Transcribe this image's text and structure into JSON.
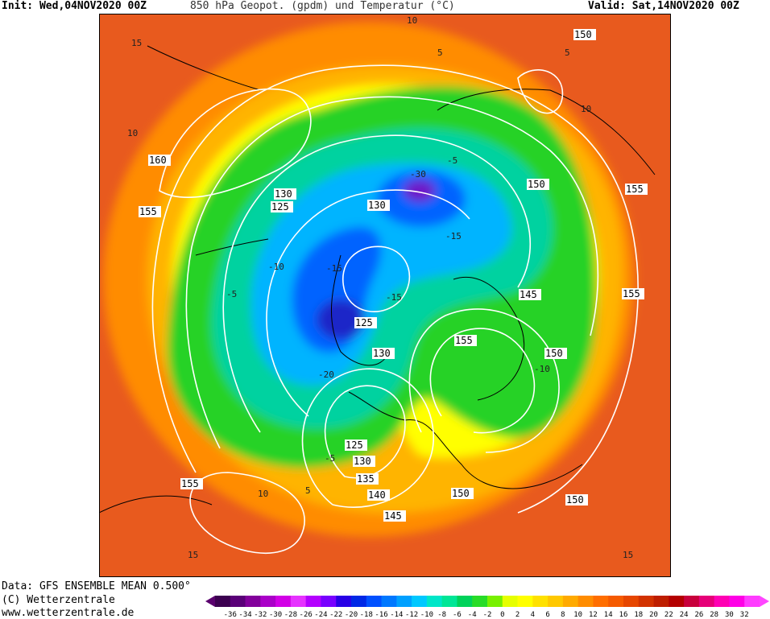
{
  "header": {
    "init": "Init: Wed,04NOV2020 00Z",
    "title": "850 hPa Geopot. (gpdm) und Temperatur (°C)",
    "valid": "Valid: Sat,14NOV2020 00Z"
  },
  "footer": {
    "data_source": "Data: GFS ENSEMBLE MEAN 0.500°",
    "copyright": "(C) Wetterzentrale",
    "website": "www.wetterzentrale.de"
  },
  "colorbar": {
    "ticks": [
      "-36",
      "-34",
      "-32",
      "-30",
      "-28",
      "-26",
      "-24",
      "-22",
      "-20",
      "-18",
      "-16",
      "-14",
      "-12",
      "-10",
      "-8",
      "-6",
      "-4",
      "-2",
      "0",
      "2",
      "4",
      "6",
      "8",
      "10",
      "12",
      "14",
      "16",
      "18",
      "20",
      "22",
      "24",
      "26",
      "28",
      "30",
      "32"
    ],
    "colors": [
      "#3c0050",
      "#5a0078",
      "#82009b",
      "#aa00c8",
      "#d200e6",
      "#e632ff",
      "#b400ff",
      "#7800ff",
      "#2800e6",
      "#0028e6",
      "#0050ff",
      "#0078ff",
      "#00a0ff",
      "#00c8ff",
      "#00e6c8",
      "#00e696",
      "#00d25a",
      "#28dc28",
      "#78f000",
      "#e6ff00",
      "#ffff00",
      "#ffe100",
      "#ffc800",
      "#ffaa00",
      "#ff8c00",
      "#ff6e00",
      "#f55a00",
      "#e64600",
      "#d23200",
      "#be1e00",
      "#b40000",
      "#c8003c",
      "#e60078",
      "#ff00b4",
      "#ff00e6",
      "#ff3cff"
    ],
    "cap_left": "#5a006e",
    "cap_right": "#ff46ff"
  },
  "map": {
    "height_labels": [
      "160",
      "155",
      "150",
      "150",
      "155",
      "130",
      "125",
      "130",
      "145",
      "125",
      "130",
      "155",
      "150",
      "125",
      "130",
      "135",
      "140",
      "145",
      "150",
      "150",
      "155",
      "155"
    ],
    "temp_labels": [
      "15",
      "10",
      "5",
      "-5",
      "-10",
      "-15",
      "-20",
      "-30",
      "-5",
      "-15",
      "-15",
      "-10",
      "-5",
      "5",
      "10",
      "15",
      "10",
      "5",
      "10",
      "15"
    ],
    "colors": {
      "outer": "#e85a1e",
      "warm": "#ff8c00",
      "orange_light": "#ffb400",
      "yellow": "#ffff00",
      "green": "#28d228",
      "teal": "#00d2a0",
      "cyan": "#00b4ff",
      "blue": "#0064ff",
      "deep_blue": "#1e28c8",
      "violet": "#6e14c8",
      "contour": "#ffffff",
      "coast": "#000000"
    }
  }
}
